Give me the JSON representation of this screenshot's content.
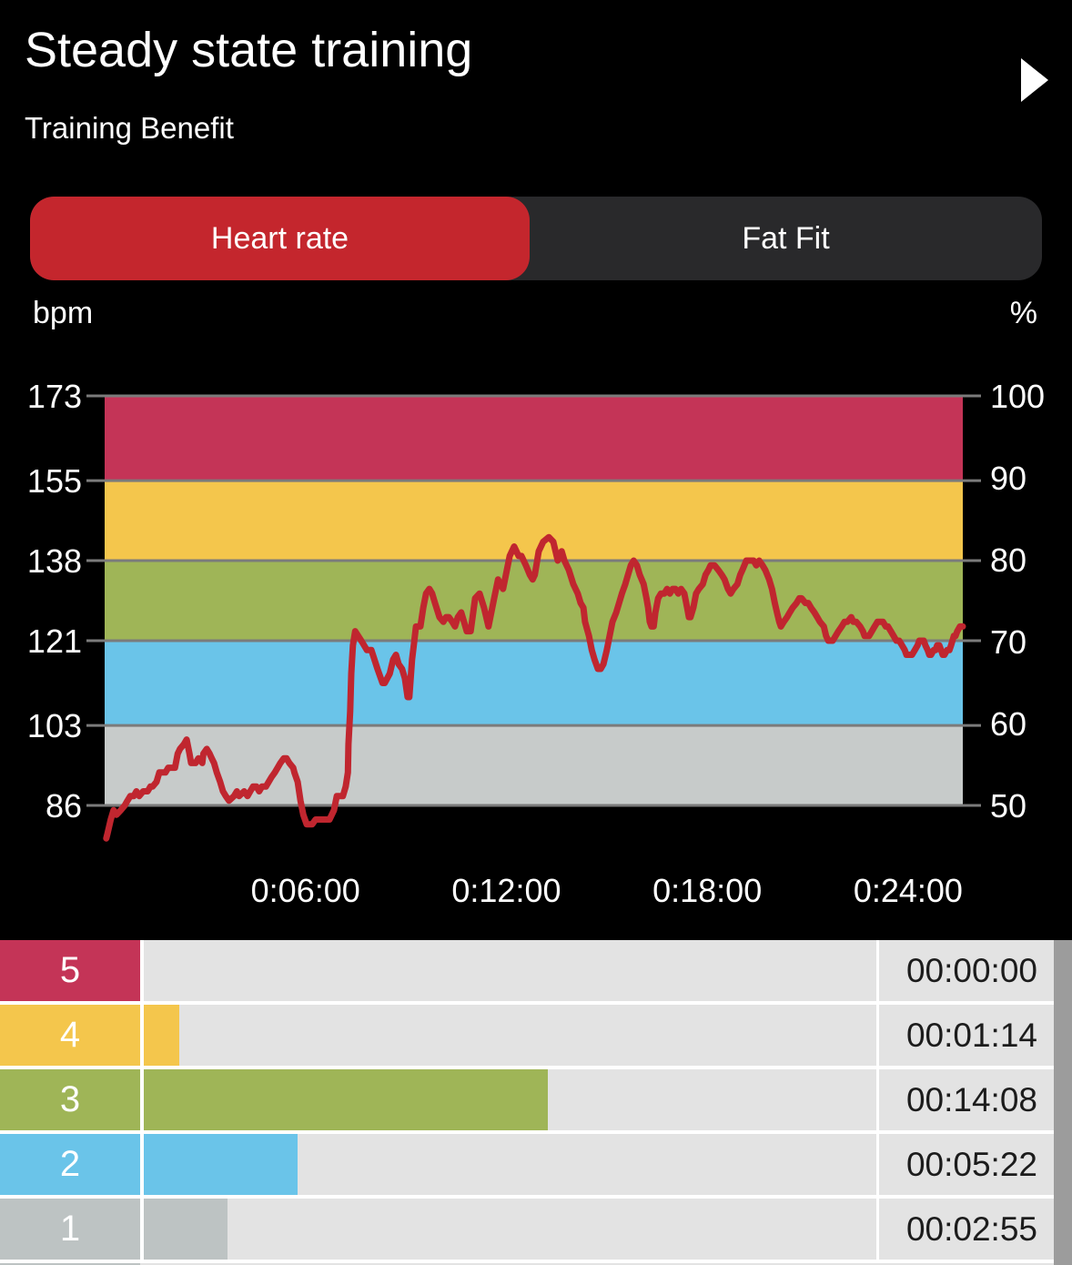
{
  "colors": {
    "background": "#000000",
    "text": "#ffffff",
    "tab_bar_bg": "#29292b",
    "tab_active_bg": "#c4262d",
    "grid": "#7b7b7b",
    "line": "#c0262f",
    "table_row_bg": "#e3e3e3",
    "table_gap": "#ffffff",
    "table_text": "#1c1c1c",
    "scrollbar": "#9c9c9c"
  },
  "header": {
    "title": "Steady state training",
    "subtitle": "Training Benefit",
    "play_icon": "play-icon"
  },
  "tabs": [
    {
      "label": "Heart rate",
      "active": true
    },
    {
      "label": "Fat Fit",
      "active": false
    }
  ],
  "axis_units": {
    "left": "bpm",
    "right": "%"
  },
  "chart_data": {
    "type": "line",
    "title": "Heart rate",
    "xlabel": "",
    "ylabel": "bpm",
    "ylabel_right": "%",
    "grid_color": "#7b7b7b",
    "x_range_sec": [
      0,
      1538
    ],
    "x_ticks": [
      {
        "label": "0:06:00",
        "sec": 360
      },
      {
        "label": "0:12:00",
        "sec": 720
      },
      {
        "label": "0:18:00",
        "sec": 1080
      },
      {
        "label": "0:24:00",
        "sec": 1440
      }
    ],
    "y_left": {
      "unit": "bpm",
      "range": [
        86,
        173
      ],
      "ticks": [
        173,
        155,
        138,
        121,
        103,
        86
      ]
    },
    "y_right": {
      "unit": "%",
      "range": [
        50,
        100
      ],
      "ticks": [
        100,
        90,
        80,
        70,
        60,
        50
      ]
    },
    "zones": [
      {
        "zone": 5,
        "bpm_range": [
          155,
          173
        ],
        "pct_range": [
          90,
          100
        ],
        "color": "#c43457"
      },
      {
        "zone": 4,
        "bpm_range": [
          138,
          155
        ],
        "pct_range": [
          80,
          90
        ],
        "color": "#f4c64c"
      },
      {
        "zone": 3,
        "bpm_range": [
          121,
          138
        ],
        "pct_range": [
          70,
          80
        ],
        "color": "#9fb557"
      },
      {
        "zone": 2,
        "bpm_range": [
          103,
          121
        ],
        "pct_range": [
          60,
          70
        ],
        "color": "#6ac4e9"
      },
      {
        "zone": 1,
        "bpm_range": [
          86,
          103
        ],
        "pct_range": [
          50,
          60
        ],
        "color": "#c7cbca"
      }
    ],
    "series": [
      {
        "name": "Heart rate",
        "color": "#c0262f",
        "points_sec_bpm": [
          [
            3,
            79
          ],
          [
            5,
            80
          ],
          [
            11,
            83
          ],
          [
            16,
            85
          ],
          [
            21,
            84
          ],
          [
            29,
            85
          ],
          [
            36,
            86
          ],
          [
            41,
            87
          ],
          [
            46,
            88
          ],
          [
            52,
            88
          ],
          [
            57,
            89
          ],
          [
            62,
            88
          ],
          [
            69,
            89
          ],
          [
            77,
            89
          ],
          [
            82,
            90
          ],
          [
            86,
            90
          ],
          [
            93,
            91
          ],
          [
            98,
            93
          ],
          [
            103,
            93
          ],
          [
            109,
            93
          ],
          [
            114,
            94
          ],
          [
            119,
            94
          ],
          [
            126,
            94
          ],
          [
            131,
            97
          ],
          [
            135,
            98
          ],
          [
            142,
            99
          ],
          [
            147,
            100
          ],
          [
            152,
            97
          ],
          [
            155,
            95
          ],
          [
            160,
            95
          ],
          [
            163,
            95
          ],
          [
            168,
            96
          ],
          [
            175,
            95
          ],
          [
            177,
            97
          ],
          [
            183,
            98
          ],
          [
            188,
            97
          ],
          [
            192,
            96
          ],
          [
            196,
            95
          ],
          [
            201,
            93
          ],
          [
            207,
            91
          ],
          [
            212,
            89
          ],
          [
            217,
            88
          ],
          [
            223,
            87
          ],
          [
            232,
            88
          ],
          [
            237,
            89
          ],
          [
            241,
            88
          ],
          [
            250,
            89
          ],
          [
            256,
            88
          ],
          [
            261,
            89
          ],
          [
            266,
            90
          ],
          [
            272,
            90
          ],
          [
            277,
            89
          ],
          [
            282,
            90
          ],
          [
            289,
            90
          ],
          [
            294,
            91
          ],
          [
            299,
            92
          ],
          [
            305,
            93
          ],
          [
            310,
            94
          ],
          [
            315,
            95
          ],
          [
            321,
            96
          ],
          [
            326,
            96
          ],
          [
            331,
            95
          ],
          [
            338,
            94
          ],
          [
            340,
            93
          ],
          [
            346,
            91
          ],
          [
            351,
            87
          ],
          [
            356,
            84
          ],
          [
            362,
            82
          ],
          [
            367,
            82
          ],
          [
            372,
            82
          ],
          [
            378,
            83
          ],
          [
            387,
            83
          ],
          [
            395,
            83
          ],
          [
            403,
            83
          ],
          [
            411,
            85
          ],
          [
            416,
            88
          ],
          [
            421,
            88
          ],
          [
            427,
            88
          ],
          [
            432,
            90
          ],
          [
            436,
            93
          ],
          [
            437,
            99
          ],
          [
            440,
            106
          ],
          [
            442,
            114
          ],
          [
            445,
            120
          ],
          [
            449,
            123
          ],
          [
            460,
            121
          ],
          [
            470,
            119
          ],
          [
            478,
            119
          ],
          [
            489,
            115
          ],
          [
            498,
            112
          ],
          [
            502,
            112
          ],
          [
            511,
            114
          ],
          [
            517,
            117
          ],
          [
            522,
            118
          ],
          [
            527,
            116
          ],
          [
            533,
            115
          ],
          [
            538,
            113
          ],
          [
            543,
            109
          ],
          [
            546,
            109
          ],
          [
            551,
            117
          ],
          [
            555,
            121
          ],
          [
            558,
            124
          ],
          [
            566,
            124
          ],
          [
            571,
            128
          ],
          [
            576,
            131
          ],
          [
            582,
            132
          ],
          [
            587,
            131
          ],
          [
            592,
            129
          ],
          [
            600,
            126
          ],
          [
            607,
            125
          ],
          [
            612,
            126
          ],
          [
            617,
            126
          ],
          [
            623,
            125
          ],
          [
            628,
            124
          ],
          [
            633,
            126
          ],
          [
            639,
            127
          ],
          [
            644,
            125
          ],
          [
            649,
            123
          ],
          [
            656,
            123
          ],
          [
            664,
            130
          ],
          [
            672,
            131
          ],
          [
            680,
            128
          ],
          [
            688,
            124
          ],
          [
            698,
            130
          ],
          [
            705,
            134
          ],
          [
            714,
            132
          ],
          [
            726,
            139
          ],
          [
            734,
            141
          ],
          [
            742,
            139
          ],
          [
            747,
            139
          ],
          [
            755,
            137
          ],
          [
            762,
            135
          ],
          [
            767,
            134
          ],
          [
            771,
            135
          ],
          [
            778,
            140
          ],
          [
            786,
            142
          ],
          [
            796,
            143
          ],
          [
            804,
            142
          ],
          [
            812,
            138
          ],
          [
            819,
            140
          ],
          [
            824,
            138
          ],
          [
            832,
            136
          ],
          [
            840,
            133
          ],
          [
            848,
            131
          ],
          [
            853,
            129
          ],
          [
            858,
            128
          ],
          [
            861,
            125
          ],
          [
            868,
            122
          ],
          [
            873,
            119
          ],
          [
            878,
            117
          ],
          [
            884,
            115
          ],
          [
            889,
            115
          ],
          [
            894,
            116
          ],
          [
            900,
            119
          ],
          [
            905,
            122
          ],
          [
            910,
            125
          ],
          [
            917,
            127
          ],
          [
            922,
            129
          ],
          [
            927,
            131
          ],
          [
            933,
            133
          ],
          [
            938,
            135
          ],
          [
            943,
            137
          ],
          [
            948,
            138
          ],
          [
            954,
            137
          ],
          [
            959,
            135
          ],
          [
            966,
            133
          ],
          [
            971,
            130
          ],
          [
            974,
            128
          ],
          [
            977,
            125
          ],
          [
            980,
            124
          ],
          [
            984,
            124
          ],
          [
            987,
            127
          ],
          [
            992,
            130
          ],
          [
            997,
            131
          ],
          [
            1003,
            131
          ],
          [
            1008,
            132
          ],
          [
            1013,
            131
          ],
          [
            1018,
            132
          ],
          [
            1023,
            132
          ],
          [
            1028,
            131
          ],
          [
            1033,
            132
          ],
          [
            1039,
            131
          ],
          [
            1044,
            128
          ],
          [
            1047,
            126
          ],
          [
            1050,
            126
          ],
          [
            1055,
            128
          ],
          [
            1060,
            131
          ],
          [
            1065,
            132
          ],
          [
            1072,
            133
          ],
          [
            1077,
            135
          ],
          [
            1082,
            136
          ],
          [
            1086,
            137
          ],
          [
            1093,
            137
          ],
          [
            1100,
            136
          ],
          [
            1106,
            135
          ],
          [
            1111,
            134
          ],
          [
            1117,
            132
          ],
          [
            1122,
            131
          ],
          [
            1127,
            132
          ],
          [
            1134,
            133
          ],
          [
            1139,
            135
          ],
          [
            1143,
            136
          ],
          [
            1150,
            138
          ],
          [
            1157,
            138
          ],
          [
            1163,
            138
          ],
          [
            1168,
            137
          ],
          [
            1173,
            138
          ],
          [
            1179,
            137
          ],
          [
            1184,
            136
          ],
          [
            1191,
            134
          ],
          [
            1196,
            132
          ],
          [
            1201,
            129
          ],
          [
            1205,
            127
          ],
          [
            1209,
            125
          ],
          [
            1212,
            124
          ],
          [
            1217,
            125
          ],
          [
            1223,
            126
          ],
          [
            1228,
            127
          ],
          [
            1233,
            128
          ],
          [
            1240,
            129
          ],
          [
            1245,
            130
          ],
          [
            1249,
            130
          ],
          [
            1256,
            129
          ],
          [
            1261,
            129
          ],
          [
            1266,
            128
          ],
          [
            1272,
            127
          ],
          [
            1277,
            126
          ],
          [
            1282,
            125
          ],
          [
            1289,
            124
          ],
          [
            1293,
            122
          ],
          [
            1297,
            121
          ],
          [
            1300,
            121
          ],
          [
            1305,
            121
          ],
          [
            1310,
            122
          ],
          [
            1315,
            123
          ],
          [
            1321,
            124
          ],
          [
            1326,
            125
          ],
          [
            1331,
            125
          ],
          [
            1338,
            126
          ],
          [
            1342,
            125
          ],
          [
            1347,
            125
          ],
          [
            1354,
            124
          ],
          [
            1359,
            123
          ],
          [
            1362,
            122
          ],
          [
            1367,
            122
          ],
          [
            1370,
            122
          ],
          [
            1375,
            123
          ],
          [
            1380,
            124
          ],
          [
            1385,
            125
          ],
          [
            1390,
            125
          ],
          [
            1395,
            125
          ],
          [
            1400,
            124
          ],
          [
            1404,
            124
          ],
          [
            1409,
            123
          ],
          [
            1414,
            122
          ],
          [
            1419,
            121
          ],
          [
            1424,
            121
          ],
          [
            1429,
            120
          ],
          [
            1434,
            119
          ],
          [
            1437,
            118
          ],
          [
            1442,
            118
          ],
          [
            1447,
            118
          ],
          [
            1452,
            119
          ],
          [
            1457,
            120
          ],
          [
            1460,
            121
          ],
          [
            1465,
            121
          ],
          [
            1468,
            121
          ],
          [
            1471,
            120
          ],
          [
            1475,
            119
          ],
          [
            1478,
            118
          ],
          [
            1481,
            118
          ],
          [
            1486,
            119
          ],
          [
            1489,
            119
          ],
          [
            1492,
            120
          ],
          [
            1496,
            120
          ],
          [
            1499,
            119
          ],
          [
            1502,
            118
          ],
          [
            1505,
            118
          ],
          [
            1510,
            119
          ],
          [
            1514,
            119
          ],
          [
            1517,
            120
          ],
          [
            1522,
            122
          ],
          [
            1525,
            122
          ],
          [
            1528,
            123
          ],
          [
            1533,
            124
          ],
          [
            1538,
            124
          ]
        ]
      }
    ]
  },
  "zone_table": {
    "rows": [
      {
        "zone": "5",
        "color": "#c43457",
        "duration": "00:00:00",
        "seconds": 0
      },
      {
        "zone": "4",
        "color": "#f4c64c",
        "duration": "00:01:14",
        "seconds": 74
      },
      {
        "zone": "3",
        "color": "#9fb557",
        "duration": "00:14:08",
        "seconds": 848
      },
      {
        "zone": "2",
        "color": "#6ac4e9",
        "duration": "00:05:22",
        "seconds": 322
      },
      {
        "zone": "1",
        "color": "#bdc3c3",
        "duration": "00:02:55",
        "seconds": 175
      }
    ],
    "partial_row_color": "#bdc3c3"
  }
}
